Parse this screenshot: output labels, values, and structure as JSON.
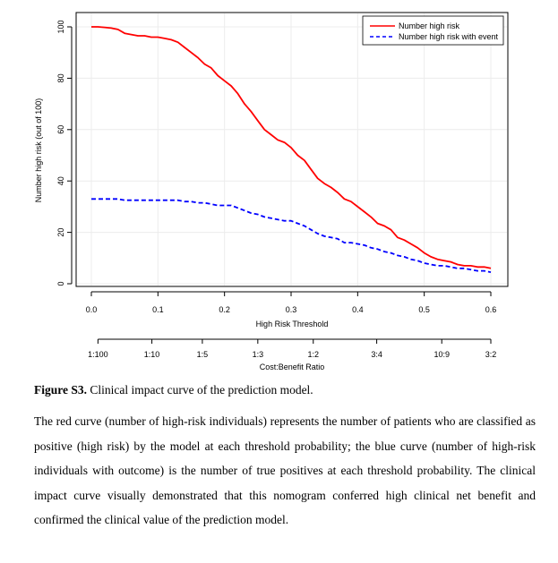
{
  "chart_data": {
    "type": "line",
    "title": "",
    "xlabel": "High Risk Threshold",
    "ylabel": "Number high risk (out of 100)",
    "xlim": [
      0.0,
      0.6
    ],
    "ylim": [
      0,
      100
    ],
    "x_ticks": [
      "0.0",
      "0.1",
      "0.2",
      "0.3",
      "0.4",
      "0.5",
      "0.6"
    ],
    "x_tick_values": [
      0.0,
      0.1,
      0.2,
      0.3,
      0.4,
      0.5,
      0.6
    ],
    "y_ticks": [
      "0",
      "20",
      "40",
      "60",
      "80",
      "100"
    ],
    "y_tick_values": [
      0,
      20,
      40,
      60,
      80,
      100
    ],
    "secondary_axis": {
      "label": "Cost:Benefit Ratio",
      "ticks": [
        "1:100",
        "1:10",
        "1:5",
        "1:3",
        "1:2",
        "3:4",
        "10:9",
        "3:2"
      ],
      "tick_thresholds": [
        0.0099,
        0.0909,
        0.1667,
        0.25,
        0.3333,
        0.4286,
        0.5263,
        0.6
      ]
    },
    "grid": true,
    "legend_position": "top-right",
    "series": [
      {
        "name": "Number high risk",
        "color": "#ff0000",
        "style": "solid",
        "x": [
          0.0,
          0.01,
          0.02,
          0.03,
          0.04,
          0.05,
          0.06,
          0.07,
          0.08,
          0.09,
          0.1,
          0.11,
          0.12,
          0.13,
          0.14,
          0.15,
          0.16,
          0.17,
          0.18,
          0.19,
          0.2,
          0.21,
          0.22,
          0.23,
          0.24,
          0.25,
          0.26,
          0.27,
          0.28,
          0.29,
          0.3,
          0.31,
          0.32,
          0.33,
          0.34,
          0.35,
          0.36,
          0.37,
          0.38,
          0.39,
          0.4,
          0.41,
          0.42,
          0.43,
          0.44,
          0.45,
          0.46,
          0.47,
          0.48,
          0.49,
          0.5,
          0.51,
          0.52,
          0.53,
          0.54,
          0.55,
          0.56,
          0.57,
          0.58,
          0.59,
          0.6
        ],
        "y": [
          100,
          100,
          99.8,
          99.5,
          99,
          97.5,
          97,
          96.5,
          96.5,
          96,
          96,
          95.5,
          95,
          94,
          92,
          90,
          88,
          85.5,
          84,
          81,
          79,
          77,
          74,
          70,
          67,
          63.5,
          60,
          58,
          56,
          55,
          53,
          50,
          48,
          44.5,
          41,
          39,
          37.5,
          35.5,
          33,
          32,
          30,
          28,
          26,
          23.5,
          22.5,
          21,
          18,
          17,
          15.5,
          14,
          12,
          10.5,
          9.5,
          9,
          8.5,
          7.5,
          7,
          7,
          6.5,
          6.5,
          6
        ]
      },
      {
        "name": "Number high risk with event",
        "color": "#0000ff",
        "style": "dashed",
        "x": [
          0.0,
          0.01,
          0.02,
          0.03,
          0.04,
          0.05,
          0.06,
          0.07,
          0.08,
          0.09,
          0.1,
          0.11,
          0.12,
          0.13,
          0.14,
          0.15,
          0.16,
          0.17,
          0.18,
          0.19,
          0.2,
          0.21,
          0.22,
          0.23,
          0.24,
          0.25,
          0.26,
          0.27,
          0.28,
          0.29,
          0.3,
          0.31,
          0.32,
          0.33,
          0.34,
          0.35,
          0.36,
          0.37,
          0.38,
          0.39,
          0.4,
          0.41,
          0.42,
          0.43,
          0.44,
          0.45,
          0.46,
          0.47,
          0.48,
          0.49,
          0.5,
          0.51,
          0.52,
          0.53,
          0.54,
          0.55,
          0.56,
          0.57,
          0.58,
          0.59,
          0.6
        ],
        "y": [
          33,
          33,
          33,
          33,
          33,
          32.5,
          32.5,
          32.5,
          32.5,
          32.5,
          32.5,
          32.5,
          32.5,
          32.5,
          32,
          32,
          31.5,
          31.5,
          31,
          30.5,
          30.5,
          30.5,
          29.5,
          28.5,
          27.5,
          27,
          26,
          25.5,
          25,
          24.5,
          24.5,
          23.5,
          22.5,
          21,
          19.5,
          18.5,
          18,
          17.5,
          16,
          16,
          15.5,
          15,
          14,
          13.5,
          12.5,
          12,
          11,
          10.5,
          9.5,
          9,
          8,
          7.5,
          7,
          7,
          6.5,
          6,
          6,
          5.5,
          5,
          5,
          4.5
        ]
      }
    ]
  },
  "caption": {
    "label": "Figure S3.",
    "title": " Clinical impact curve of the prediction model.",
    "body": "The red curve (number of high-risk individuals) represents the number of patients who are classified as positive (high risk) by the model at each threshold probability; the blue curve (number of high-risk individuals with outcome) is the number of true positives at each threshold probability. The clinical impact curve visually demonstrated that this nomogram conferred high clinical net benefit and confirmed the clinical value of the prediction model."
  }
}
